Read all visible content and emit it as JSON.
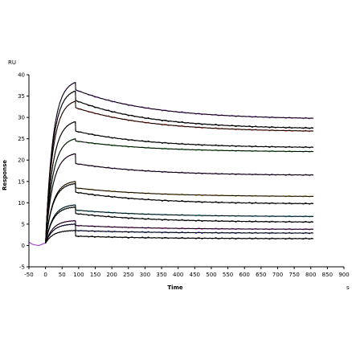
{
  "chart_data": {
    "type": "line",
    "title": "",
    "xlabel": "Time",
    "ylabel": "Response",
    "x_unit": "s",
    "y_unit": "RU",
    "xlim": [
      -50,
      900
    ],
    "ylim": [
      -5,
      40
    ],
    "x_ticks": [
      -50,
      0,
      50,
      100,
      150,
      200,
      250,
      300,
      350,
      400,
      450,
      500,
      550,
      600,
      650,
      700,
      750,
      800,
      850,
      900
    ],
    "y_ticks": [
      -5,
      0,
      5,
      10,
      15,
      20,
      25,
      30,
      35,
      40
    ],
    "grid": false,
    "legend": "none",
    "injection_end": 90,
    "data_end": 810,
    "series": [
      {
        "color": "#9b30d9",
        "fit_color": "#000000",
        "values": {
          "t0": 0.5,
          "peak": 38.2,
          "after": 36.5,
          "end": 29.8
        }
      },
      {
        "color": "#000000",
        "fit_color": "#000000",
        "values": {
          "t0": 0.5,
          "peak": 36.2,
          "after": 34.0,
          "end": 27.5
        }
      },
      {
        "color": "#e8412a",
        "fit_color": "#000000",
        "values": {
          "t0": 0.5,
          "peak": 33.8,
          "after": 32.3,
          "end": 26.8
        }
      },
      {
        "color": "#1a1a1a",
        "fit_color": "#000000",
        "values": {
          "t0": 0.5,
          "peak": 29.0,
          "after": 26.8,
          "end": 23.0
        }
      },
      {
        "color": "#2db52d",
        "fit_color": "#000000",
        "values": {
          "t0": 0.5,
          "peak": 25.0,
          "after": 24.5,
          "end": 22.0
        }
      },
      {
        "color": "#6a2a8a",
        "fit_color": "#000000",
        "values": {
          "t0": 0.5,
          "peak": 21.5,
          "after": 19.2,
          "end": 16.5
        }
      },
      {
        "color": "#c89a1a",
        "fit_color": "#000000",
        "values": {
          "t0": 0.5,
          "peak": 15.0,
          "after": 13.5,
          "end": 11.5
        }
      },
      {
        "color": "#000000",
        "fit_color": "#000000",
        "values": {
          "t0": 0.5,
          "peak": 14.5,
          "after": 12.5,
          "end": 9.8
        }
      },
      {
        "color": "#1ab0c8",
        "fit_color": "#000000",
        "values": {
          "t0": 0.5,
          "peak": 9.5,
          "after": 8.3,
          "end": 6.8
        }
      },
      {
        "color": "#000000",
        "fit_color": "#000000",
        "values": {
          "t0": 0.5,
          "peak": 9.0,
          "after": 7.5,
          "end": 5.5
        }
      },
      {
        "color": "#d02ad0",
        "fit_color": "#000000",
        "values": {
          "t0": 0.5,
          "peak": 5.8,
          "after": 4.7,
          "end": 3.8
        }
      },
      {
        "color": "#1a2aa0",
        "fit_color": "#000000",
        "values": {
          "t0": 0.5,
          "peak": 5.0,
          "after": 3.5,
          "end": 2.9
        }
      },
      {
        "color": "#000000",
        "fit_color": "#000000",
        "values": {
          "t0": 0.5,
          "peak": 3.5,
          "after": 2.2,
          "end": 1.6
        }
      }
    ],
    "baseline_trace": {
      "color": "#9b30d9",
      "x": [
        -50,
        -40,
        -30,
        -20,
        -10,
        0
      ],
      "values": [
        0.8,
        0.3,
        0.1,
        0.0,
        0.3,
        0.6
      ]
    }
  }
}
